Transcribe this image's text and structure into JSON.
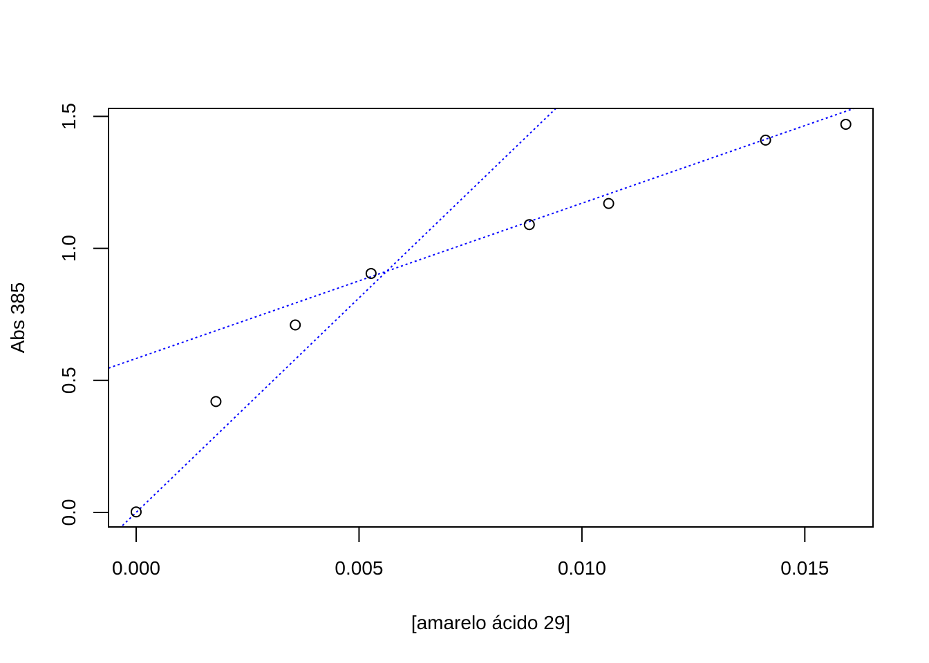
{
  "chart_data": {
    "type": "scatter",
    "title": "",
    "xlabel": "[amarelo ácido 29]",
    "ylabel": "Abs 385",
    "xlim": [
      -0.00062,
      0.01653
    ],
    "ylim": [
      -0.055,
      1.53
    ],
    "x_ticks": [
      0.0,
      0.005,
      0.01,
      0.015
    ],
    "x_tick_labels": [
      "0.000",
      "0.005",
      "0.010",
      "0.015"
    ],
    "y_ticks": [
      0.0,
      0.5,
      1.0,
      1.5
    ],
    "y_tick_labels": [
      "0.0",
      "0.5",
      "1.0",
      "1.5"
    ],
    "grid": false,
    "points": {
      "x": [
        0.0,
        0.00179,
        0.00357,
        0.00527,
        0.00882,
        0.0106,
        0.01412,
        0.01592
      ],
      "y": [
        0.002,
        0.42,
        0.71,
        0.905,
        1.09,
        1.17,
        1.41,
        1.47
      ],
      "marker": "open-circle",
      "color": "#000000"
    },
    "lines": [
      {
        "slope": 162.5,
        "intercept": 0.0,
        "style": "dotted",
        "color": "#0000ff"
      },
      {
        "slope": 58.8,
        "intercept": 0.583,
        "style": "dotted",
        "color": "#0000ff"
      }
    ]
  }
}
